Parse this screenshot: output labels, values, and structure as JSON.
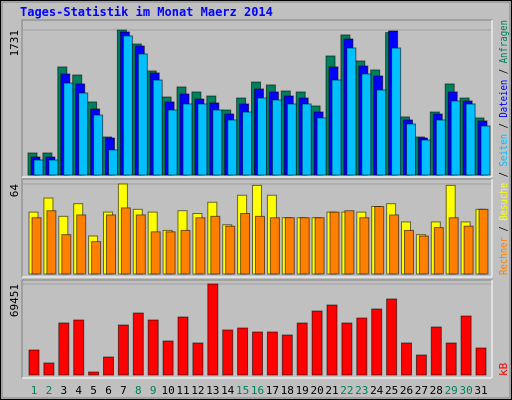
{
  "chart_data": [
    {
      "type": "bar",
      "title": "Tages-Statistik im Monat Maerz 2014",
      "ylim": [
        0,
        1731
      ],
      "yticks": [
        1731
      ],
      "series": [
        {
          "name": "Anfragen",
          "color": "#00805c",
          "values": [
            263,
            263,
            1290,
            1194,
            872,
            454,
            1731,
            1564,
            1242,
            931,
            1051,
            991,
            943,
            776,
            919,
            1110,
            1075,
            1003,
            991,
            824,
            1421,
            1672,
            1361,
            1254,
            1700,
            693,
            454,
            752,
            1087,
            919,
            681
          ]
        },
        {
          "name": "Dateien",
          "color": "#0000ff",
          "values": [
            215,
            215,
            1206,
            1087,
            788,
            442,
            1707,
            1540,
            1218,
            872,
            967,
            907,
            860,
            728,
            848,
            1027,
            991,
            943,
            919,
            752,
            1290,
            1624,
            1301,
            1182,
            1719,
            657,
            442,
            728,
            991,
            884,
            645
          ]
        },
        {
          "name": "Seiten",
          "color": "#00c0ff",
          "values": [
            179,
            179,
            1098,
            979,
            716,
            299,
            1660,
            1445,
            1134,
            776,
            848,
            848,
            776,
            657,
            752,
            919,
            896,
            848,
            848,
            681,
            1134,
            1516,
            1206,
            1015,
            1516,
            609,
            418,
            657,
            884,
            848,
            585
          ]
        }
      ]
    },
    {
      "type": "bar",
      "ylim": [
        0,
        64
      ],
      "yticks": [
        64
      ],
      "series": [
        {
          "name": "Besuche",
          "color": "#ffff00",
          "values": [
            44,
            54,
            41,
            50,
            27,
            44,
            64,
            46,
            44,
            31,
            45,
            43,
            51,
            35,
            56,
            63,
            56,
            40,
            40,
            40,
            44,
            44,
            44,
            48,
            50,
            37,
            28,
            37,
            63,
            37,
            46
          ]
        },
        {
          "name": "Rechner",
          "color": "#ff8000",
          "values": [
            40,
            45,
            28,
            42,
            23,
            42,
            47,
            42,
            30,
            30,
            31,
            40,
            41,
            34,
            43,
            41,
            40,
            40,
            40,
            40,
            44,
            45,
            40,
            48,
            42,
            31,
            27,
            33,
            40,
            34,
            46
          ]
        }
      ]
    },
    {
      "type": "bar",
      "ylim": [
        0,
        69451
      ],
      "yticks": [
        69451
      ],
      "legend_separator": " / ",
      "categories": [
        "1",
        "2",
        "3",
        "4",
        "5",
        "6",
        "7",
        "8",
        "9",
        "10",
        "11",
        "12",
        "13",
        "14",
        "15",
        "16",
        "17",
        "18",
        "19",
        "20",
        "21",
        "22",
        "23",
        "24",
        "25",
        "26",
        "27",
        "28",
        "29",
        "30",
        "31"
      ],
      "category_colors": [
        "#00805c",
        "#00805c",
        "#000000",
        "#000000",
        "#000000",
        "#000000",
        "#000000",
        "#00805c",
        "#00805c",
        "#000000",
        "#000000",
        "#000000",
        "#000000",
        "#000000",
        "#00805c",
        "#00805c",
        "#000000",
        "#000000",
        "#000000",
        "#000000",
        "#000000",
        "#00805c",
        "#00805c",
        "#000000",
        "#000000",
        "#000000",
        "#000000",
        "#000000",
        "#00805c",
        "#00805c",
        "#000000"
      ],
      "series": [
        {
          "name": "kB",
          "color": "#ff0000",
          "values": [
            19075,
            9156,
            39676,
            41965,
            2289,
            13734,
            38150,
            47306,
            41965,
            25942,
            44254,
            24416,
            69451,
            34335,
            35861,
            32809,
            32809,
            30520,
            39676,
            48832,
            53410,
            39676,
            43491,
            50358,
            57988,
            24416,
            15260,
            36624,
            24416,
            45017,
            20601
          ]
        }
      ]
    }
  ]
}
